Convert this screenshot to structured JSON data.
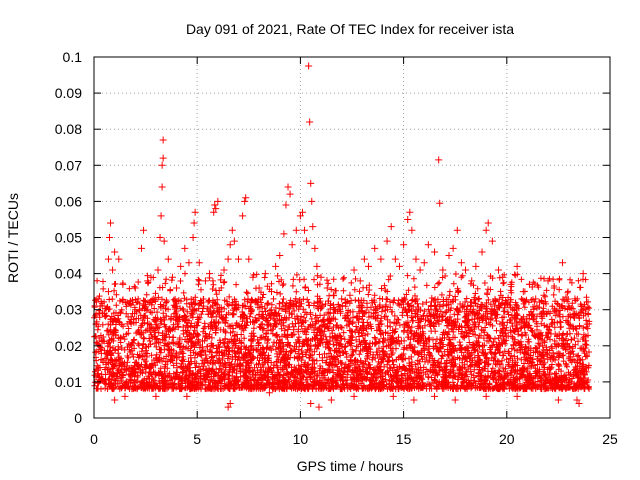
{
  "chart_data": {
    "type": "scatter",
    "title": "Day 091 of 2021, Rate Of TEC Index for receiver ista",
    "xlabel": "GPS time / hours",
    "ylabel": "ROTI / TECUs",
    "xlim": [
      0,
      25
    ],
    "ylim": [
      0,
      0.1
    ],
    "xticks": [
      0,
      5,
      10,
      15,
      20,
      25
    ],
    "xtick_labels": [
      "0",
      "5",
      "10",
      "15",
      "20",
      "25"
    ],
    "yticks": [
      0,
      0.01,
      0.02,
      0.03,
      0.04,
      0.05,
      0.06,
      0.07,
      0.08,
      0.09,
      0.1
    ],
    "ytick_labels": [
      "0",
      "0.01",
      "0.02",
      "0.03",
      "0.04",
      "0.05",
      "0.06",
      "0.07",
      "0.08",
      "0.09",
      "0.1"
    ],
    "grid": true,
    "marker": "+",
    "marker_color": "#ff0000",
    "data_range_x": [
      0,
      24
    ],
    "typical_range_y": [
      0.005,
      0.03
    ],
    "series": [
      {
        "name": "ROTI",
        "points": [
          [
            0.1,
            0.026
          ],
          [
            0.2,
            0.033
          ],
          [
            0.3,
            0.031
          ],
          [
            0.5,
            0.029
          ],
          [
            0.7,
            0.035
          ],
          [
            0.7,
            0.044
          ],
          [
            0.75,
            0.05
          ],
          [
            0.8,
            0.054
          ],
          [
            0.9,
            0.041
          ],
          [
            1.0,
            0.046
          ],
          [
            1.2,
            0.044
          ],
          [
            1.4,
            0.037
          ],
          [
            1.6,
            0.032
          ],
          [
            1.8,
            0.028
          ],
          [
            2.0,
            0.036
          ],
          [
            2.2,
            0.03
          ],
          [
            2.3,
            0.047
          ],
          [
            2.4,
            0.052
          ],
          [
            2.6,
            0.038
          ],
          [
            2.9,
            0.033
          ],
          [
            3.1,
            0.041
          ],
          [
            3.2,
            0.05
          ],
          [
            3.25,
            0.056
          ],
          [
            3.3,
            0.064
          ],
          [
            3.3,
            0.07
          ],
          [
            3.35,
            0.072
          ],
          [
            3.35,
            0.077
          ],
          [
            3.4,
            0.049
          ],
          [
            3.6,
            0.044
          ],
          [
            3.8,
            0.039
          ],
          [
            4.0,
            0.036
          ],
          [
            4.2,
            0.042
          ],
          [
            4.4,
            0.047
          ],
          [
            4.6,
            0.043
          ],
          [
            4.8,
            0.05
          ],
          [
            4.85,
            0.054
          ],
          [
            4.9,
            0.057
          ],
          [
            5.1,
            0.043
          ],
          [
            5.4,
            0.038
          ],
          [
            5.6,
            0.04
          ],
          [
            5.8,
            0.057
          ],
          [
            5.85,
            0.059
          ],
          [
            5.9,
            0.058
          ],
          [
            6.0,
            0.06
          ],
          [
            6.3,
            0.041
          ],
          [
            6.5,
            0.044
          ],
          [
            6.6,
            0.048
          ],
          [
            6.7,
            0.052
          ],
          [
            6.8,
            0.049
          ],
          [
            7.0,
            0.044
          ],
          [
            7.2,
            0.056
          ],
          [
            7.3,
            0.06
          ],
          [
            7.35,
            0.061
          ],
          [
            7.5,
            0.044
          ],
          [
            7.7,
            0.039
          ],
          [
            8.0,
            0.036
          ],
          [
            8.3,
            0.04
          ],
          [
            8.6,
            0.035
          ],
          [
            8.8,
            0.042
          ],
          [
            9.0,
            0.045
          ],
          [
            9.2,
            0.051
          ],
          [
            9.3,
            0.059
          ],
          [
            9.4,
            0.064
          ],
          [
            9.5,
            0.062
          ],
          [
            9.6,
            0.048
          ],
          [
            9.8,
            0.052
          ],
          [
            10.0,
            0.056
          ],
          [
            10.1,
            0.057
          ],
          [
            10.2,
            0.052
          ],
          [
            10.3,
            0.049
          ],
          [
            10.4,
            0.0975
          ],
          [
            10.45,
            0.082
          ],
          [
            10.5,
            0.065
          ],
          [
            10.55,
            0.06
          ],
          [
            10.6,
            0.053
          ],
          [
            10.7,
            0.047
          ],
          [
            10.8,
            0.042
          ],
          [
            11.0,
            0.039
          ],
          [
            11.3,
            0.036
          ],
          [
            11.6,
            0.034
          ],
          [
            12.0,
            0.033
          ],
          [
            12.4,
            0.034
          ],
          [
            12.6,
            0.041
          ],
          [
            12.9,
            0.038
          ],
          [
            13.1,
            0.044
          ],
          [
            13.3,
            0.042
          ],
          [
            13.6,
            0.047
          ],
          [
            13.9,
            0.044
          ],
          [
            14.2,
            0.049
          ],
          [
            14.4,
            0.053
          ],
          [
            14.6,
            0.044
          ],
          [
            14.8,
            0.042
          ],
          [
            15.0,
            0.048
          ],
          [
            15.2,
            0.055
          ],
          [
            15.3,
            0.057
          ],
          [
            15.4,
            0.052
          ],
          [
            15.6,
            0.044
          ],
          [
            15.8,
            0.041
          ],
          [
            16.0,
            0.043
          ],
          [
            16.2,
            0.048
          ],
          [
            16.5,
            0.046
          ],
          [
            16.7,
            0.0715
          ],
          [
            16.75,
            0.0595
          ],
          [
            16.9,
            0.041
          ],
          [
            17.2,
            0.045
          ],
          [
            17.4,
            0.047
          ],
          [
            17.6,
            0.052
          ],
          [
            17.8,
            0.043
          ],
          [
            18.0,
            0.041
          ],
          [
            18.3,
            0.038
          ],
          [
            18.5,
            0.042
          ],
          [
            18.8,
            0.046
          ],
          [
            19.0,
            0.052
          ],
          [
            19.1,
            0.054
          ],
          [
            19.3,
            0.049
          ],
          [
            19.6,
            0.041
          ],
          [
            19.8,
            0.039
          ],
          [
            20.2,
            0.037
          ],
          [
            20.5,
            0.042
          ],
          [
            20.8,
            0.035
          ],
          [
            21.1,
            0.037
          ],
          [
            21.4,
            0.033
          ],
          [
            21.8,
            0.034
          ],
          [
            22.0,
            0.038
          ],
          [
            22.3,
            0.036
          ],
          [
            22.7,
            0.043
          ],
          [
            23.0,
            0.031
          ],
          [
            23.3,
            0.033
          ],
          [
            23.6,
            0.031
          ],
          [
            23.7,
            0.04
          ],
          [
            23.8,
            0.029
          ],
          [
            23.9,
            0.026
          ],
          [
            1.0,
            0.005
          ],
          [
            1.5,
            0.006
          ],
          [
            3.0,
            0.006
          ],
          [
            4.5,
            0.006
          ],
          [
            6.5,
            0.003
          ],
          [
            6.6,
            0.004
          ],
          [
            8.5,
            0.007
          ],
          [
            10.5,
            0.004
          ],
          [
            10.9,
            0.003
          ],
          [
            11.5,
            0.005
          ],
          [
            12.6,
            0.006
          ],
          [
            14.5,
            0.006
          ],
          [
            15.5,
            0.005
          ],
          [
            16.5,
            0.006
          ],
          [
            17.5,
            0.005
          ],
          [
            19.0,
            0.006
          ],
          [
            20.5,
            0.006
          ],
          [
            22.5,
            0.005
          ],
          [
            23.5,
            0.004
          ],
          [
            23.4,
            0.005
          ]
        ]
      }
    ]
  }
}
